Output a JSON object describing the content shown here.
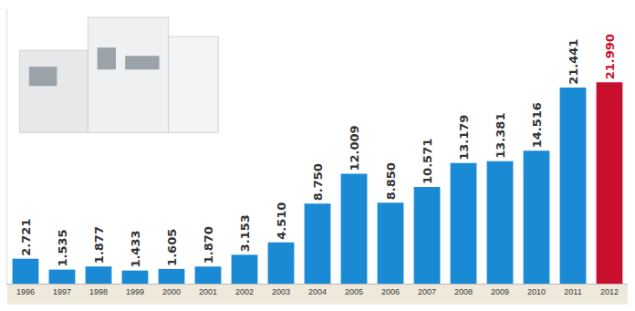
{
  "chart_data": {
    "type": "bar",
    "categories": [
      "1996",
      "1997",
      "1998",
      "1999",
      "2000",
      "2001",
      "2002",
      "2003",
      "2004",
      "2005",
      "2006",
      "2007",
      "2008",
      "2009",
      "2010",
      "2011",
      "2012"
    ],
    "values": [
      2721,
      1535,
      1877,
      1433,
      1605,
      1870,
      3153,
      4510,
      8750,
      12009,
      8850,
      10571,
      13179,
      13381,
      14516,
      21441,
      21990
    ],
    "value_labels": [
      "2.721",
      "1.535",
      "1.877",
      "1.433",
      "1.605",
      "1.870",
      "3.153",
      "4.510",
      "8.750",
      "12.009",
      "8.850",
      "10.571",
      "13.179",
      "13.381",
      "14.516",
      "21.441",
      "21.990"
    ],
    "colors": [
      "#1a8ad4",
      "#1a8ad4",
      "#1a8ad4",
      "#1a8ad4",
      "#1a8ad4",
      "#1a8ad4",
      "#1a8ad4",
      "#1a8ad4",
      "#1a8ad4",
      "#1a8ad4",
      "#1a8ad4",
      "#1a8ad4",
      "#1a8ad4",
      "#1a8ad4",
      "#1a8ad4",
      "#1a8ad4",
      "#c8102e"
    ],
    "ylim": [
      0,
      30000
    ],
    "data_labels": true,
    "tick_labels": "x",
    "grid": false
  }
}
